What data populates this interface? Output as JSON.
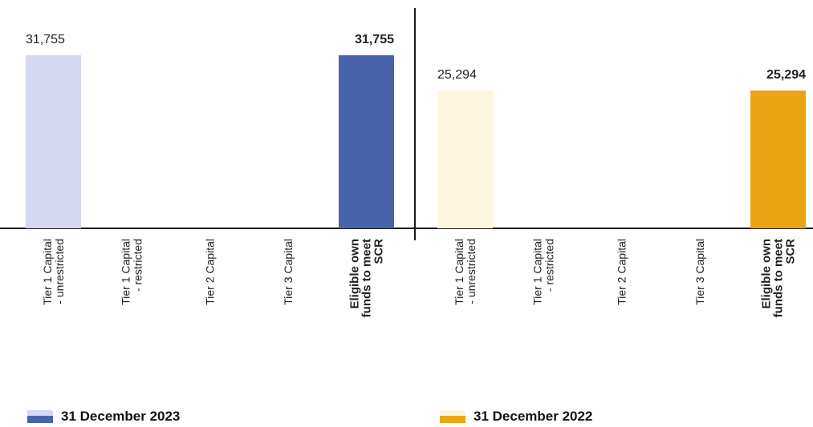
{
  "chart_data": {
    "type": "bar",
    "panels": [
      {
        "series_name": "31 December 2023",
        "categories": [
          "Tier 1 Capital - unrestricted",
          "Tier 1 Capital - restricted",
          "Tier 2 Capital",
          "Tier 3 Capital",
          "Eligible own funds to meet SCR"
        ],
        "category_lines": [
          [
            "Tier 1 Capital",
            "- unrestricted"
          ],
          [
            "Tier 1 Capital",
            "- restricted"
          ],
          [
            "Tier 2 Capital"
          ],
          [
            "Tier 3 Capital"
          ],
          [
            "Eligible own",
            "funds to meet",
            "SCR"
          ]
        ],
        "values": [
          31755,
          0,
          0,
          0,
          31755
        ],
        "value_labels": [
          "31,755",
          "",
          "",
          "",
          "31,755"
        ],
        "bold_index": 4,
        "light_color": "#d4d7ef",
        "dark_color": "#4863ab"
      },
      {
        "series_name": "31 December 2022",
        "categories": [
          "Tier 1 Capital - unrestricted",
          "Tier 1 Capital - restricted",
          "Tier 2 Capital",
          "Tier 3 Capital",
          "Eligible own funds to meet SCR"
        ],
        "category_lines": [
          [
            "Tier 1 Capital",
            "- unrestricted"
          ],
          [
            "Tier 1 Capital",
            "- restricted"
          ],
          [
            "Tier 2 Capital"
          ],
          [
            "Tier 3 Capital"
          ],
          [
            "Eligible own",
            "funds to meet",
            "SCR"
          ]
        ],
        "values": [
          25294,
          0,
          0,
          0,
          25294
        ],
        "value_labels": [
          "25,294",
          "",
          "",
          "",
          "25,294"
        ],
        "bold_index": 4,
        "light_color": "#fdf6df",
        "dark_color": "#eaa514"
      }
    ],
    "ylim": [
      0,
      31755
    ],
    "grid": false
  },
  "legend": {
    "items": [
      {
        "label": "31 December 2023",
        "light_color": "#d4d7ef",
        "dark_color": "#4863ab"
      },
      {
        "label": "31 December 2022",
        "light_color": "#fdf6df",
        "dark_color": "#eaa514"
      }
    ]
  }
}
